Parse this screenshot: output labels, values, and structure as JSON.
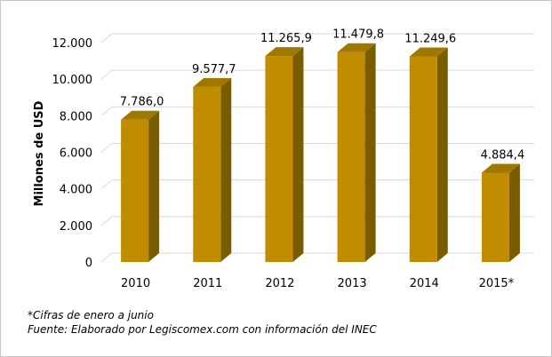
{
  "chart_data": {
    "type": "bar",
    "categories": [
      "2010",
      "2011",
      "2012",
      "2013",
      "2014",
      "2015*"
    ],
    "values": [
      7786.0,
      9577.7,
      11265.9,
      11479.8,
      11249.6,
      4884.4
    ],
    "data_labels": [
      "7.786,0",
      "9.577,7",
      "11.265,9",
      "11.479,8",
      "11.249,6",
      "4.884,4"
    ],
    "ylabel": "Millones de USD",
    "ylim": [
      0,
      12000
    ],
    "yticks": [
      0,
      2000,
      4000,
      6000,
      8000,
      10000,
      12000
    ],
    "ytick_labels": [
      "0",
      "2.000",
      "4.000",
      "6.000",
      "8.000",
      "10.000",
      "12.000"
    ],
    "grid": true,
    "style": "3d-column",
    "colors": {
      "bar_front": "#c08c00",
      "bar_side": "#7a5c00",
      "bar_top": "#9e7800",
      "grid": "#d9d9d9"
    }
  },
  "notes": {
    "footnote": "*Cifras de enero a junio",
    "source": "Fuente: Elaborado por Legiscomex.com con información del INEC"
  }
}
